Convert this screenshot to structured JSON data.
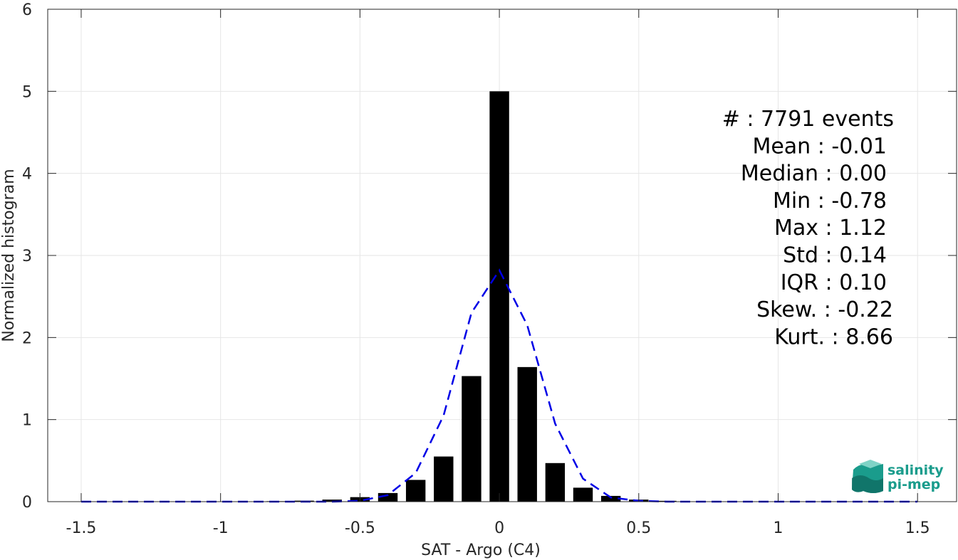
{
  "chart_data": {
    "type": "bar",
    "xlabel": "SAT - Argo (C4)",
    "ylabel": "Normalized histogram",
    "xlim": [
      -1.62,
      1.64
    ],
    "ylim": [
      0,
      6
    ],
    "xticks": [
      -1.5,
      -1,
      -0.5,
      0,
      0.5,
      1,
      1.5
    ],
    "xtick_labels": [
      "-1.5",
      "-1",
      "-0.5",
      "0",
      "0.5",
      "1",
      "1.5"
    ],
    "yticks": [
      0,
      1,
      2,
      3,
      4,
      5,
      6
    ],
    "ytick_labels": [
      "0",
      "1",
      "2",
      "3",
      "4",
      "5",
      "6"
    ],
    "grid": true,
    "bar_width": 0.07,
    "bars": {
      "x": [
        -0.9,
        -0.8,
        -0.7,
        -0.6,
        -0.5,
        -0.4,
        -0.3,
        -0.2,
        -0.1,
        0.0,
        0.1,
        0.2,
        0.3,
        0.4,
        0.5,
        0.6,
        0.7
      ],
      "values": [
        0.003,
        0.006,
        0.012,
        0.025,
        0.055,
        0.105,
        0.265,
        0.55,
        1.53,
        5.0,
        1.64,
        0.47,
        0.17,
        0.07,
        0.025,
        0.01,
        0.004
      ]
    },
    "fit": {
      "style": "dashed",
      "x": [
        -1.5,
        -1.4,
        -1.3,
        -1.2,
        -1.1,
        -1.0,
        -0.9,
        -0.8,
        -0.7,
        -0.6,
        -0.5,
        -0.4,
        -0.3,
        -0.2,
        -0.1,
        0.0,
        0.1,
        0.2,
        0.3,
        0.4,
        0.5,
        0.6,
        0.7,
        0.8,
        0.9,
        1.0,
        1.1,
        1.2,
        1.3,
        1.4,
        1.5
      ],
      "y": [
        0,
        0,
        0,
        0,
        0,
        0,
        0,
        0,
        0,
        0.0,
        0.01,
        0.08,
        0.35,
        1.05,
        2.3,
        2.82,
        2.15,
        0.95,
        0.28,
        0.05,
        0.01,
        0,
        0,
        0,
        0,
        0,
        0,
        0,
        0,
        0,
        0
      ]
    },
    "stats_lines": [
      "#  : 7791 events",
      "Mean : -0.01",
      "Median : 0.00",
      "Min : -0.78",
      "Max : 1.12",
      "Std : 0.14",
      "IQR : 0.10",
      "Skew. : -0.22",
      "Kurt. : 8.66"
    ]
  },
  "logo": {
    "line1": "salinity",
    "line2": "pi-mep"
  },
  "colors": {
    "bar": "#000000",
    "fit_line": "#0000e6",
    "axis": "#262626",
    "grid": "#e6e6e6",
    "logo_teal": "#1a9c8c",
    "logo_dark": "#0f6e64"
  }
}
